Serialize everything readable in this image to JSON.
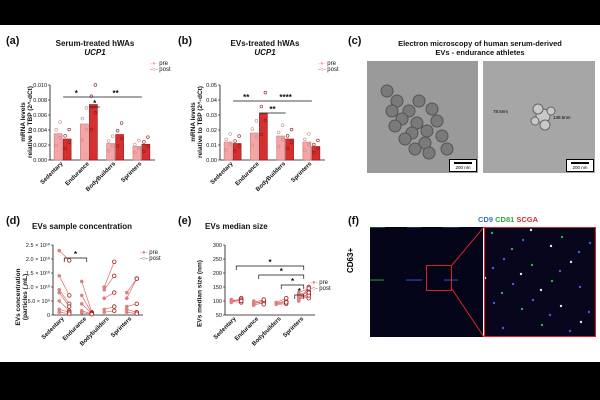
{
  "panel_labels": {
    "a": "(a)",
    "b": "(b)",
    "c": "(c)",
    "d": "(d)",
    "e": "(e)",
    "f": "(f)"
  },
  "legend": {
    "pre": "pre",
    "post": "post"
  },
  "colors": {
    "pre": "#f4a6a6",
    "post": "#d62f2f",
    "pre_dark": "#e07f7f",
    "post_dark": "#a51c1c"
  },
  "panel_a": {
    "title_line1": "Serum-treated hWAs",
    "title_line2": "UCP1",
    "ylabel_line1": "mRNA levels",
    "ylabel_line2": "relative to TBP (2^-dCt)",
    "yticks": [
      "0.000",
      "0.002",
      "0.004",
      "0.006",
      "0.008",
      "0.010"
    ],
    "categories": [
      "Sedentary",
      "Endurance",
      "BodyBuilders",
      "Sprinters"
    ],
    "significance": [
      "*",
      "*",
      "**"
    ]
  },
  "panel_b": {
    "title_line1": "EVs-treated hWAs",
    "title_line2": "UCP1",
    "ylabel_line1": "mRNA levels",
    "ylabel_line2": "relative to TBP (2^-dCt)",
    "yticks": [
      "0.00",
      "0.01",
      "0.02",
      "0.03",
      "0.04",
      "0.05"
    ],
    "categories": [
      "Sedentary",
      "Endurance",
      "BodyBuilders",
      "Sprinters"
    ],
    "significance": [
      "**",
      "**",
      "****"
    ]
  },
  "panel_c": {
    "title_line1": "Electron microscopy of human serum-derived",
    "title_line2": "EVs - endurance athletes",
    "scale1": "200 nm",
    "scale2": "200 nm",
    "measure1": "78.5nm",
    "measure2": "138.5nm"
  },
  "panel_d": {
    "title": "EVs sample concentration",
    "ylabel_line1": "EVs concentration",
    "ylabel_line2": "(particles / mL)",
    "yticks": [
      "0",
      "5.0 × 10⁹",
      "1.0 × 10¹⁰",
      "1.5 × 10¹⁰",
      "2.0 × 10¹⁰",
      "2.5 × 10¹⁰"
    ],
    "categories": [
      "Sedentary",
      "Endurance",
      "Bodybuilders",
      "Sprinters"
    ],
    "significance": [
      "*"
    ]
  },
  "panel_e": {
    "title": "EVs median size",
    "ylabel": "EVs median size (nm)",
    "yticks": [
      "50",
      "100",
      "150",
      "200",
      "250",
      "300"
    ],
    "categories": [
      "Sedentary",
      "Endurance",
      "Bodybuilders",
      "Sprinters"
    ],
    "significance": [
      "*",
      "*",
      "*",
      "*"
    ]
  },
  "panel_f": {
    "marker1": "CD9",
    "marker2": "CD81",
    "marker3": "SCGA",
    "row_label": "CD63+",
    "marker_colors": [
      "#3a6fd8",
      "#2fae3c",
      "#d62f2f"
    ]
  },
  "chart_data": [
    {
      "type": "bar",
      "panel": "a",
      "categories": [
        "Sedentary",
        "Endurance",
        "BodyBuilders",
        "Sprinters"
      ],
      "ylim": [
        0,
        0.01
      ],
      "series": [
        {
          "name": "pre",
          "values": [
            0.0035,
            0.0048,
            0.0022,
            0.0018
          ]
        },
        {
          "name": "post",
          "values": [
            0.0028,
            0.0074,
            0.0034,
            0.0021
          ]
        }
      ]
    },
    {
      "type": "bar",
      "panel": "b",
      "categories": [
        "Sedentary",
        "Endurance",
        "BodyBuilders",
        "Sprinters"
      ],
      "ylim": [
        0,
        0.05
      ],
      "series": [
        {
          "name": "pre",
          "values": [
            0.012,
            0.018,
            0.016,
            0.012
          ]
        },
        {
          "name": "post",
          "values": [
            0.011,
            0.031,
            0.014,
            0.009
          ]
        }
      ]
    },
    {
      "type": "line",
      "panel": "d",
      "categories": [
        "Sedentary",
        "Endurance",
        "Bodybuilders",
        "Sprinters"
      ],
      "ylim": [
        0,
        25000000000
      ],
      "pairs": [
        [
          [
            23000000000,
            19500000000
          ],
          [
            14000000000,
            7000000000
          ],
          [
            9000000000,
            4000000000
          ],
          [
            8000000000,
            3000000000
          ],
          [
            5000000000,
            1500000000
          ],
          [
            2000000000,
            1000000000
          ],
          [
            1000000000,
            500000000
          ]
        ],
        [
          [
            12000000000,
            1000000000
          ],
          [
            7000000000,
            700000000
          ],
          [
            4000000000,
            600000000
          ],
          [
            1500000000,
            400000000
          ],
          [
            800000000,
            300000000
          ]
        ],
        [
          [
            10000000000,
            19000000000
          ],
          [
            9000000000,
            14000000000
          ],
          [
            6000000000,
            8000000000
          ],
          [
            2000000000,
            3000000000
          ],
          [
            1000000000,
            1500000000
          ]
        ],
        [
          [
            8000000000,
            13000000000
          ],
          [
            6000000000,
            13000000000
          ],
          [
            3000000000,
            4000000000
          ],
          [
            2000000000,
            1000000000
          ],
          [
            1000000000,
            500000000
          ]
        ]
      ]
    },
    {
      "type": "line",
      "panel": "e",
      "categories": [
        "Sedentary",
        "Endurance",
        "Bodybuilders",
        "Sprinters"
      ],
      "ylim": [
        50,
        300
      ],
      "pairs": [
        [
          [
            95,
            110
          ],
          [
            100,
            105
          ],
          [
            98,
            95
          ],
          [
            105,
            100
          ]
        ],
        [
          [
            90,
            100
          ],
          [
            85,
            95
          ],
          [
            95,
            105
          ],
          [
            100,
            88
          ]
        ],
        [
          [
            92,
            100
          ],
          [
            95,
            110
          ],
          [
            88,
            90
          ],
          [
            90,
            95
          ]
        ],
        [
          [
            100,
            150
          ],
          [
            115,
            135
          ],
          [
            110,
            125
          ],
          [
            120,
            110
          ],
          [
            130,
            145
          ],
          [
            105,
            120
          ],
          [
            125,
            130
          ]
        ]
      ]
    }
  ]
}
